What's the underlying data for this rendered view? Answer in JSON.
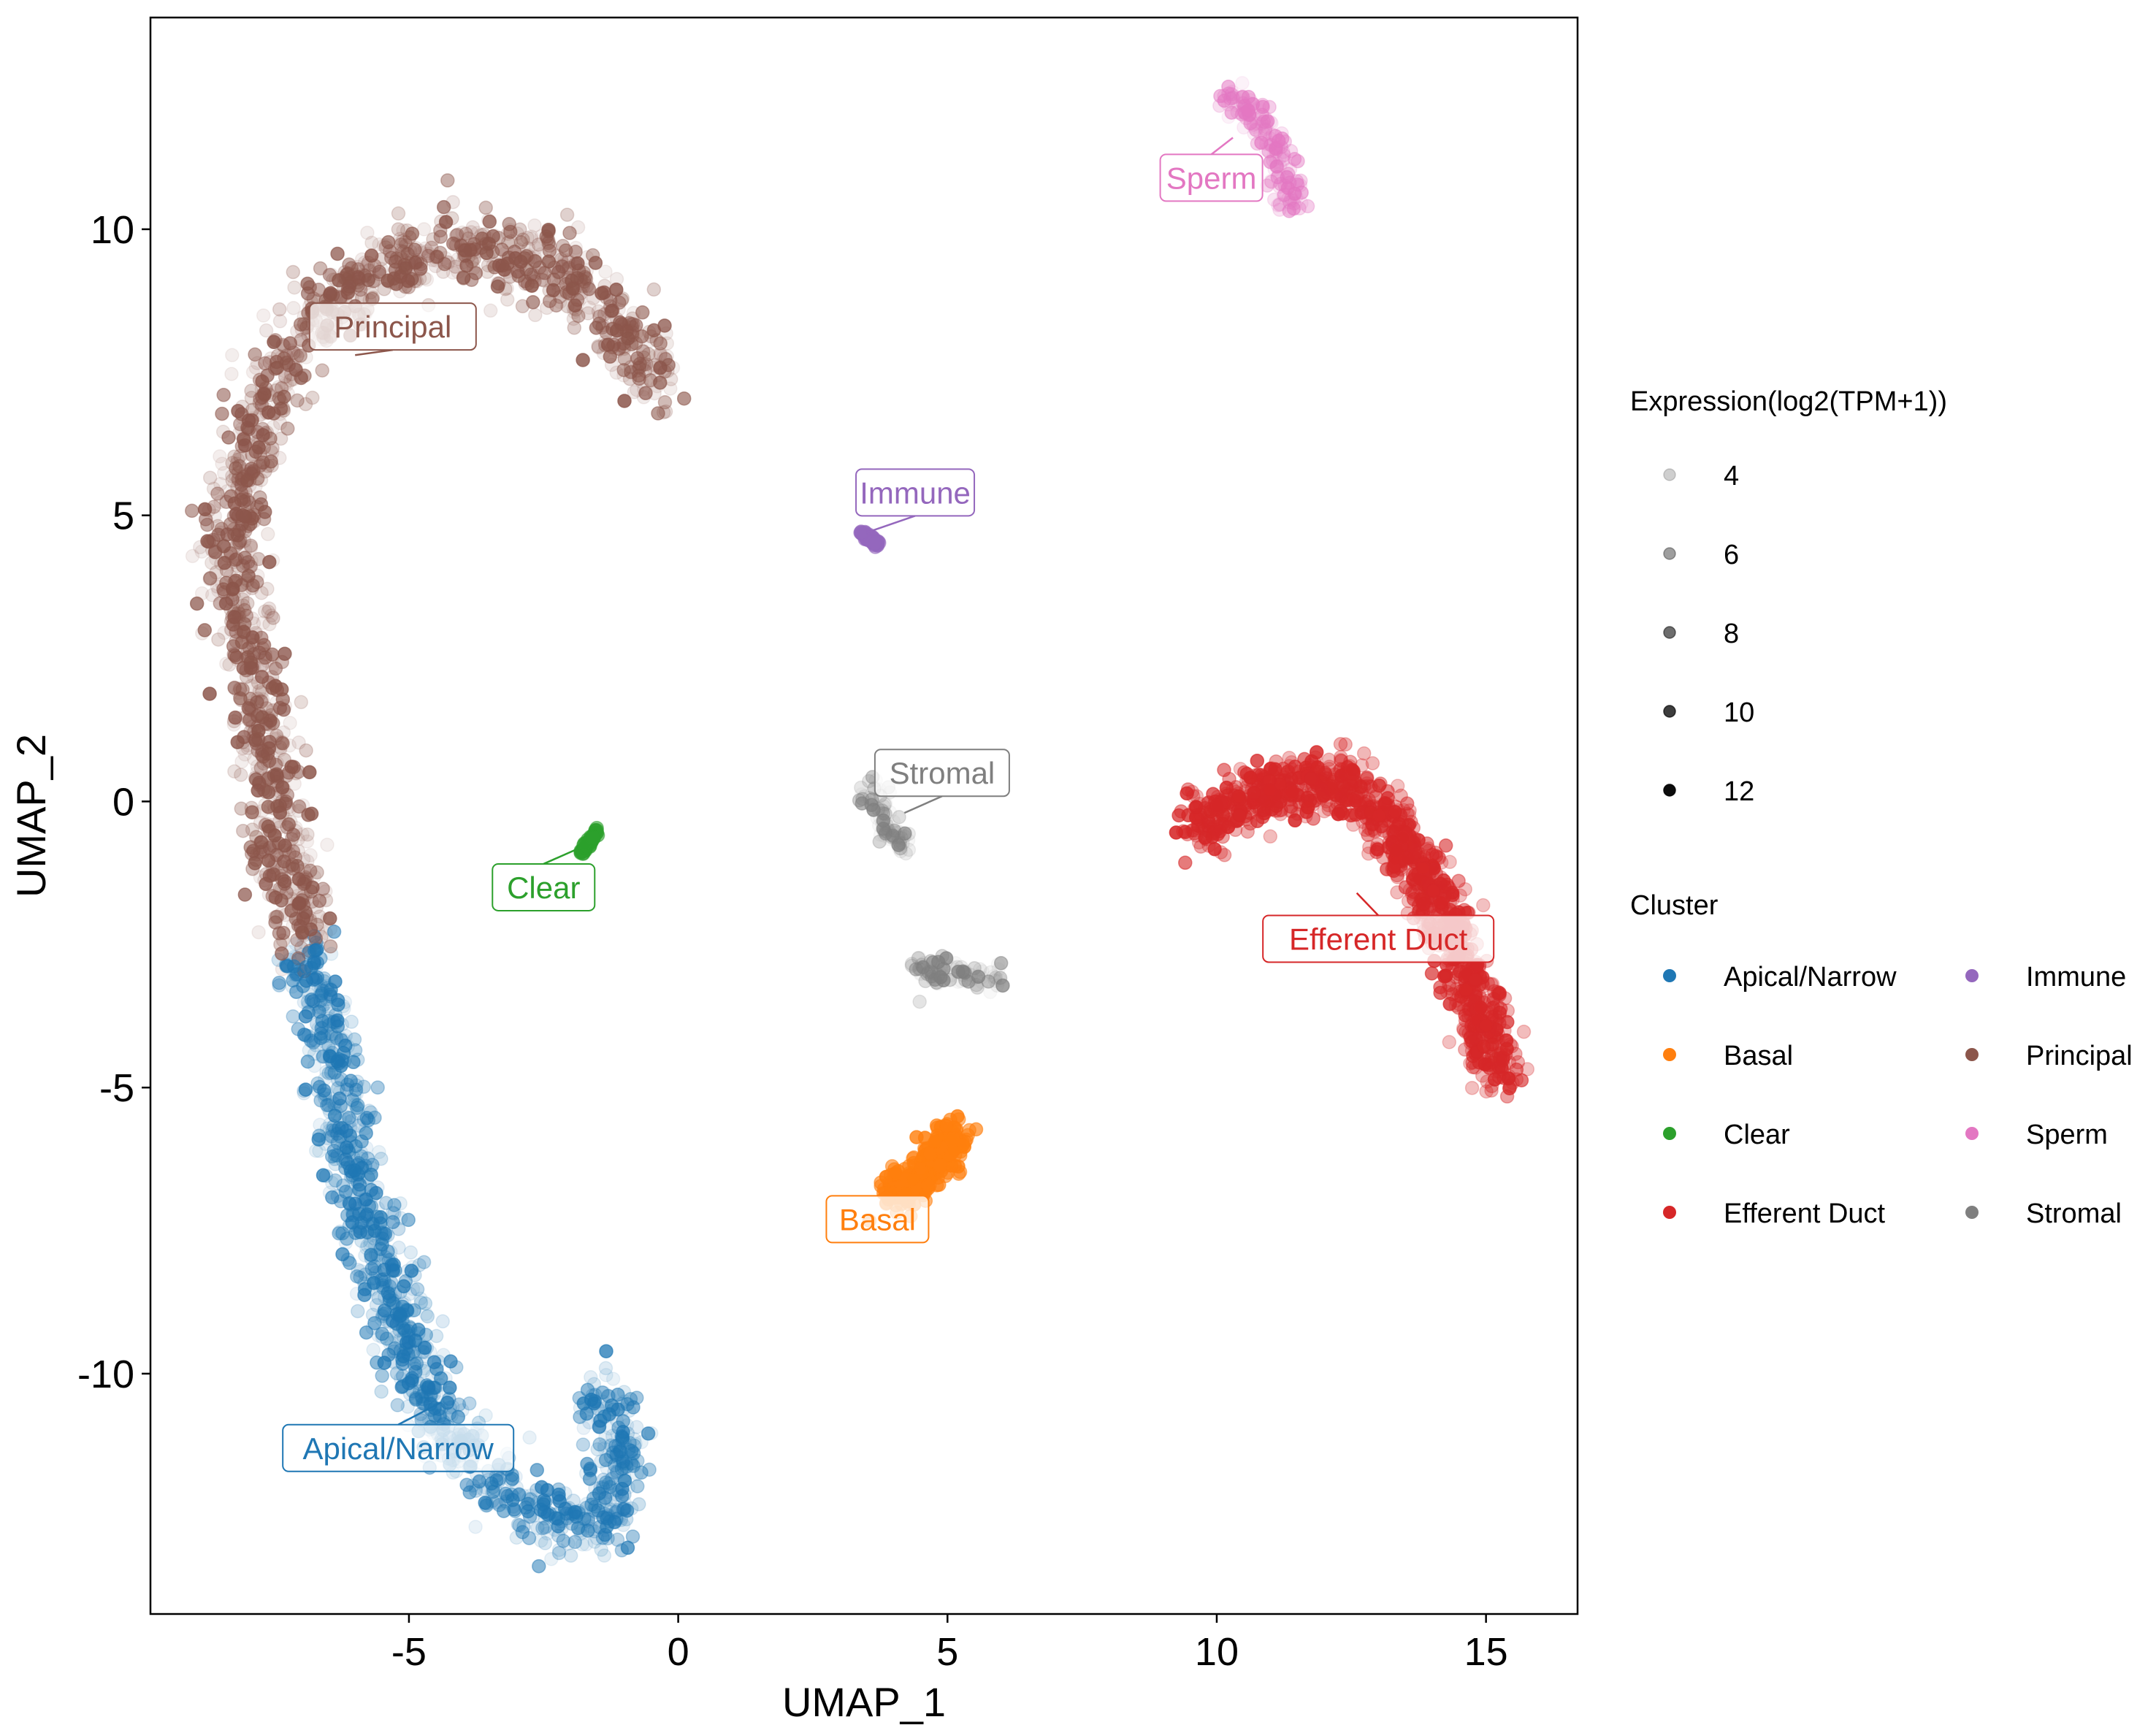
{
  "chart_data": {
    "type": "scatter",
    "title": "",
    "xlabel": "UMAP_1",
    "ylabel": "UMAP_2",
    "xlim": [
      -9.8,
      16.7
    ],
    "ylim": [
      -14.2,
      13.7
    ],
    "x_ticks": [
      -5,
      0,
      5,
      10,
      15
    ],
    "y_ticks": [
      -10,
      -5,
      0,
      5,
      10
    ],
    "x_tick_labels": [
      "-5",
      "0",
      "5",
      "10",
      "15"
    ],
    "y_tick_labels": [
      "-10",
      "-5",
      "0",
      "5",
      "10"
    ],
    "grid": false,
    "legend_position": "right",
    "alpha_legend": {
      "title": "Expression(log2(TPM+1))",
      "levels": [
        4,
        6,
        8,
        10,
        12
      ],
      "labels": [
        "4",
        "6",
        "8",
        "10",
        "12"
      ]
    },
    "color_legend": {
      "title": "Cluster",
      "entries": [
        {
          "name": "Apical/Narrow",
          "color": "#1f77b4"
        },
        {
          "name": "Basal",
          "color": "#ff7f0e"
        },
        {
          "name": "Clear",
          "color": "#2ca02c"
        },
        {
          "name": "Efferent Duct",
          "color": "#d62728"
        },
        {
          "name": "Immune",
          "color": "#9467bd"
        },
        {
          "name": "Principal",
          "color": "#8c564b"
        },
        {
          "name": "Sperm",
          "color": "#e377c2"
        },
        {
          "name": "Stromal",
          "color": "#7f7f7f"
        }
      ]
    },
    "cluster_labels": [
      {
        "name": "Principal",
        "x": -5.3,
        "y": 8.3,
        "px": -6.0,
        "py": 7.8,
        "color": "#8c564b"
      },
      {
        "name": "Sperm",
        "x": 9.9,
        "y": 10.9,
        "px": 10.3,
        "py": 11.6,
        "color": "#e377c2"
      },
      {
        "name": "Immune",
        "x": 4.4,
        "y": 5.4,
        "px": 3.5,
        "py": 4.7,
        "color": "#9467bd"
      },
      {
        "name": "Stromal",
        "x": 4.9,
        "y": 0.5,
        "px": 4.2,
        "py": -0.2,
        "color": "#7f7f7f"
      },
      {
        "name": "Clear",
        "x": -2.5,
        "y": -1.5,
        "px": -1.8,
        "py": -0.8,
        "color": "#2ca02c"
      },
      {
        "name": "Efferent Duct",
        "x": 13.0,
        "y": -2.4,
        "px": 12.6,
        "py": -1.6,
        "color": "#d62728"
      },
      {
        "name": "Basal",
        "x": 3.7,
        "y": -7.3,
        "px": 4.1,
        "py": -6.7,
        "color": "#ff7f0e"
      },
      {
        "name": "Apical/Narrow",
        "x": -5.2,
        "y": -11.3,
        "px": -4.4,
        "py": -10.5,
        "color": "#1f77b4"
      }
    ],
    "clusters": [
      {
        "name": "Principal",
        "color": "#8c564b",
        "n_points": 1400,
        "expression_range": [
          3,
          11
        ],
        "path": [
          [
            -6.8,
            -2.5
          ],
          [
            -7.4,
            -1.0
          ],
          [
            -7.6,
            0.8
          ],
          [
            -8.0,
            2.5
          ],
          [
            -8.3,
            4.0
          ],
          [
            -8.1,
            5.6
          ],
          [
            -7.6,
            7.0
          ],
          [
            -7.0,
            8.2
          ],
          [
            -6.0,
            9.1
          ],
          [
            -4.6,
            9.7
          ],
          [
            -3.2,
            9.6
          ],
          [
            -1.8,
            9.0
          ],
          [
            -0.9,
            8.0
          ],
          [
            -0.3,
            7.2
          ]
        ],
        "spread": 0.55
      },
      {
        "name": "Apical/Narrow",
        "color": "#1f77b4",
        "n_points": 1100,
        "expression_range": [
          3,
          10
        ],
        "path": [
          [
            -6.9,
            -2.7
          ],
          [
            -6.4,
            -4.6
          ],
          [
            -6.0,
            -6.6
          ],
          [
            -5.4,
            -8.6
          ],
          [
            -4.6,
            -10.6
          ],
          [
            -3.4,
            -11.9
          ],
          [
            -2.2,
            -12.6
          ],
          [
            -1.3,
            -12.5
          ],
          [
            -1.0,
            -11.4
          ],
          [
            -1.4,
            -10.2
          ]
        ],
        "spread": 0.5
      },
      {
        "name": "Efferent Duct",
        "color": "#d62728",
        "n_points": 1100,
        "expression_range": [
          5,
          12
        ],
        "path": [
          [
            9.6,
            -0.5
          ],
          [
            10.8,
            0.2
          ],
          [
            12.2,
            0.4
          ],
          [
            13.3,
            -0.5
          ],
          [
            14.1,
            -1.8
          ],
          [
            14.8,
            -3.3
          ],
          [
            15.2,
            -4.8
          ]
        ],
        "spread": 0.45
      },
      {
        "name": "Basal",
        "color": "#ff7f0e",
        "n_points": 320,
        "expression_range": [
          8,
          12
        ],
        "path": [
          [
            3.9,
            -6.9
          ],
          [
            4.5,
            -6.6
          ],
          [
            5.2,
            -5.8
          ]
        ],
        "spread": 0.28
      },
      {
        "name": "Sperm",
        "color": "#e377c2",
        "n_points": 160,
        "expression_range": [
          3,
          9
        ],
        "path": [
          [
            10.2,
            12.3
          ],
          [
            10.8,
            11.9
          ],
          [
            11.2,
            11.2
          ],
          [
            11.4,
            10.3
          ]
        ],
        "spread": 0.25
      },
      {
        "name": "Immune",
        "color": "#9467bd",
        "n_points": 45,
        "expression_range": [
          8,
          10
        ],
        "path": [
          [
            3.4,
            4.7
          ],
          [
            3.7,
            4.5
          ]
        ],
        "spread": 0.06
      },
      {
        "name": "Clear",
        "color": "#2ca02c",
        "n_points": 45,
        "expression_range": [
          8,
          10
        ],
        "path": [
          [
            -1.8,
            -0.9
          ],
          [
            -1.5,
            -0.5
          ]
        ],
        "spread": 0.06
      },
      {
        "name": "Stromal",
        "color": "#7f7f7f",
        "n_points": 170,
        "expression_range": [
          2,
          10
        ],
        "path": [
          [
            3.5,
            0.3
          ],
          [
            3.9,
            -0.5
          ],
          [
            4.3,
            -0.8
          ]
        ],
        "secondary_path": [
          [
            4.4,
            -2.9
          ],
          [
            5.2,
            -3.0
          ],
          [
            6.0,
            -3.1
          ]
        ],
        "spread": 0.22
      }
    ]
  }
}
